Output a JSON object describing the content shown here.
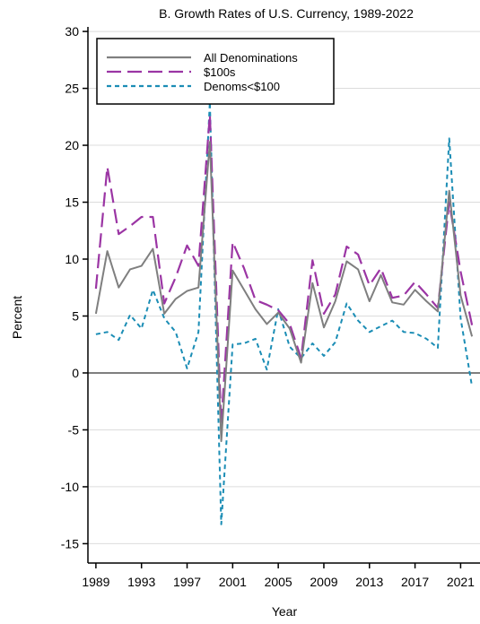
{
  "chart_data": {
    "type": "line",
    "title": "B. Growth Rates of U.S. Currency, 1989-2022",
    "xlabel": "Year",
    "ylabel": "Percent",
    "xlim": [
      1988.3,
      2022.7
    ],
    "ylim": [
      -16.7,
      30.4
    ],
    "x_ticks": [
      1989,
      1993,
      1997,
      2001,
      2005,
      2009,
      2013,
      2017,
      2021
    ],
    "y_ticks": [
      -15,
      -10,
      -5,
      0,
      5,
      10,
      15,
      20,
      25,
      30
    ],
    "grid": "horizontal",
    "reference_line": 0,
    "legend_position": "top-left",
    "x": [
      1989,
      1990,
      1991,
      1992,
      1993,
      1994,
      1995,
      1996,
      1997,
      1998,
      1999,
      2000,
      2001,
      2002,
      2003,
      2004,
      2005,
      2006,
      2007,
      2008,
      2009,
      2010,
      2011,
      2012,
      2013,
      2014,
      2015,
      2016,
      2017,
      2018,
      2019,
      2020,
      2021,
      2022
    ],
    "series": [
      {
        "name": "All Denominations",
        "color": "#7f7f7f",
        "dash": "solid",
        "values": [
          5.2,
          10.7,
          7.5,
          9.1,
          9.4,
          10.9,
          5.2,
          6.5,
          7.2,
          7.5,
          20.3,
          -6.0,
          9.0,
          7.3,
          5.6,
          4.3,
          5.3,
          3.9,
          0.9,
          7.9,
          4.0,
          6.3,
          9.8,
          9.1,
          6.3,
          8.6,
          6.2,
          6.0,
          7.3,
          6.3,
          5.4,
          16.0,
          6.8,
          3.2
        ]
      },
      {
        "name": "$100s",
        "color": "#9b35a4",
        "dash": "long",
        "values": [
          7.4,
          18.1,
          12.2,
          12.9,
          13.7,
          13.7,
          6.1,
          8.4,
          11.2,
          9.4,
          22.7,
          -4.5,
          11.5,
          9.2,
          6.4,
          6.0,
          5.5,
          4.3,
          1.3,
          9.9,
          5.2,
          6.9,
          11.1,
          10.4,
          7.7,
          9.2,
          6.6,
          6.8,
          8.0,
          6.9,
          5.7,
          15.0,
          8.9,
          4.2
        ]
      },
      {
        "name": "Denoms<$100",
        "color": "#1b8db5",
        "dash": "short",
        "values": [
          3.4,
          3.6,
          2.9,
          5.1,
          3.9,
          7.3,
          4.8,
          3.6,
          0.4,
          3.6,
          23.8,
          -13.3,
          2.5,
          2.6,
          3.0,
          0.3,
          5.6,
          2.3,
          1.3,
          2.6,
          1.5,
          2.7,
          6.1,
          4.6,
          3.6,
          4.1,
          4.6,
          3.6,
          3.5,
          3.0,
          2.2,
          20.6,
          4.8,
          -1.2
        ]
      }
    ]
  }
}
